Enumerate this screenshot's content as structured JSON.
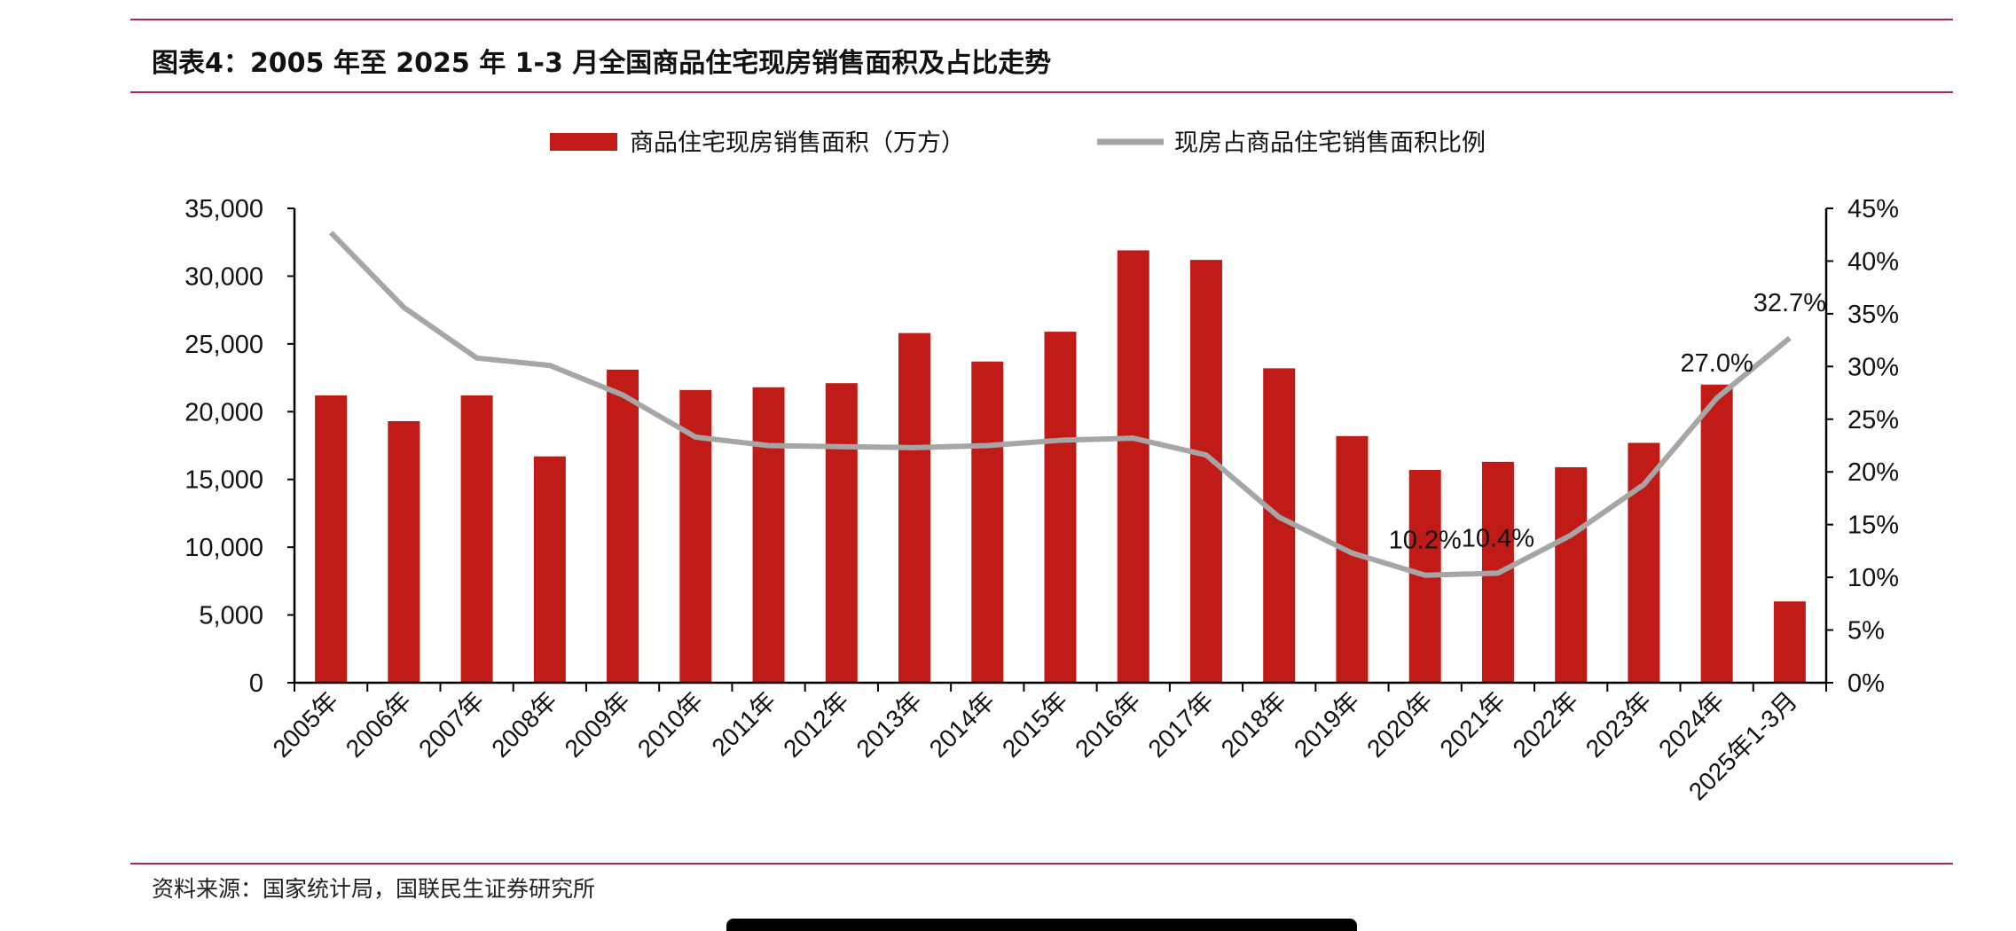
{
  "header": {
    "title": "图表4：2005 年至 2025 年 1-3 月全国商品住宅现房销售面积及占比走势"
  },
  "footer": {
    "source": "资料来源：国家统计局，国联民生证券研究所"
  },
  "colors": {
    "bar": "#C01B17",
    "line": "#A6A6A6",
    "rule": "#B0284F"
  },
  "chart_data": {
    "type": "bar+line",
    "title": "",
    "legend_position": "top",
    "categories": [
      "2005年",
      "2006年",
      "2007年",
      "2008年",
      "2009年",
      "2010年",
      "2011年",
      "2012年",
      "2013年",
      "2014年",
      "2015年",
      "2016年",
      "2017年",
      "2018年",
      "2019年",
      "2020年",
      "2021年",
      "2022年",
      "2023年",
      "2024年",
      "2025年1-3月"
    ],
    "series": [
      {
        "name": "商品住宅现房销售面积（万方）",
        "type": "bar",
        "axis": "left",
        "values": [
          21200,
          19300,
          21200,
          16700,
          23100,
          21600,
          21800,
          22100,
          25800,
          23700,
          25900,
          31900,
          31200,
          23200,
          18200,
          15700,
          16300,
          15900,
          17700,
          22000,
          6000
        ]
      },
      {
        "name": "现房占商品住宅销售面积比例",
        "type": "line",
        "axis": "right",
        "unit": "%",
        "values": [
          42.7,
          35.6,
          30.8,
          30.1,
          27.3,
          23.3,
          22.5,
          22.4,
          22.3,
          22.5,
          23.0,
          23.2,
          21.6,
          15.7,
          12.3,
          10.2,
          10.4,
          14.0,
          18.8,
          27.0,
          32.7
        ]
      }
    ],
    "data_labels": [
      {
        "category_index": 15,
        "text": "10.2%"
      },
      {
        "category_index": 16,
        "text": "10.4%"
      },
      {
        "category_index": 19,
        "text": "27.0%"
      },
      {
        "category_index": 20,
        "text": "32.7%"
      }
    ],
    "y_left": {
      "range": [
        0,
        35000
      ],
      "ticks": [
        "0",
        "5,000",
        "10,000",
        "15,000",
        "20,000",
        "25,000",
        "30,000",
        "35,000"
      ]
    },
    "y_right": {
      "range": [
        0,
        45
      ],
      "ticks": [
        "0%",
        "5%",
        "10%",
        "15%",
        "20%",
        "25%",
        "30%",
        "35%",
        "40%",
        "45%"
      ]
    },
    "grid": false
  }
}
